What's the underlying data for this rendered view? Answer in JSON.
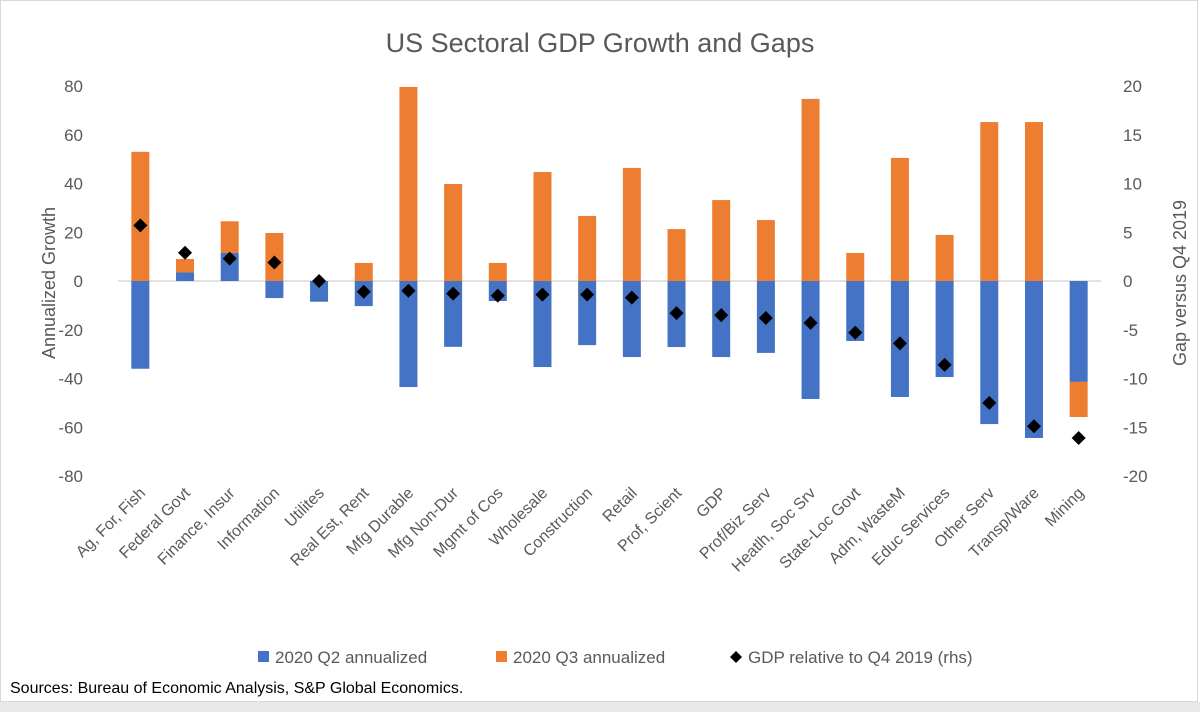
{
  "chart_data": {
    "type": "bar",
    "stacked": true,
    "title": "US Sectoral GDP Growth and Gaps",
    "ylabel": "Annualized Growth",
    "y2label": "Gap versus Q4 2019",
    "xlabel": "",
    "ylim": [
      -80,
      80
    ],
    "y_ticks": [
      "80",
      "60",
      "40",
      "20",
      "0",
      "-20",
      "-40",
      "-60",
      "-80"
    ],
    "y_tick_values": [
      80,
      60,
      40,
      20,
      0,
      -20,
      -40,
      -60,
      -80
    ],
    "y2lim": [
      -20,
      20
    ],
    "y2_ticks": [
      "20",
      "15",
      "10",
      "5",
      "0",
      "-5",
      "-10",
      "-15",
      "-20"
    ],
    "y2_tick_values": [
      20,
      15,
      10,
      5,
      0,
      -5,
      -10,
      -15,
      -20
    ],
    "grid": false,
    "legend_position": "bottom",
    "categories": [
      "Ag, For, Fish",
      "Federal Govt",
      "Finance, Insur",
      "Information",
      "Utilites",
      "Real Est, Rent",
      "Mfg Durable",
      "Mfg Non-Dur",
      "Mgmt of Cos",
      "Wholesale",
      "Construction",
      "Retail",
      "Prof, Scient",
      "GDP",
      "Prof/Biz Serv",
      "Heatlh, Soc Srv",
      "State-Loc Govt",
      "Adm, WasteM",
      "Educ Services",
      "Other Serv",
      "Transp/Ware",
      "Mining"
    ],
    "series": [
      {
        "name": "2020 Q2 annualized",
        "type": "bar",
        "axis": "left",
        "color": "#4472c4",
        "values": [
          -36,
          3.5,
          11.5,
          -7,
          -8.5,
          -10.3,
          -43.5,
          -27,
          -8.2,
          -35.3,
          -26.3,
          -31.2,
          -27.1,
          -31.2,
          -29.5,
          -48.4,
          -24.6,
          -47.6,
          -39.4,
          -58.7,
          -64.4,
          -41.4
        ]
      },
      {
        "name": "2020 Q3 annualized",
        "type": "bar",
        "axis": "left",
        "color": "#ed7d31",
        "values": [
          53,
          5.5,
          13,
          19.7,
          0,
          7.4,
          79.6,
          39.8,
          7.4,
          44.7,
          26.7,
          46.4,
          21.3,
          33.2,
          25,
          74.7,
          11.5,
          50.5,
          18.9,
          65.2,
          65.2,
          -14.4
        ]
      },
      {
        "name": "GDP relative to Q4 2019 (rhs)",
        "type": "scatter",
        "axis": "right",
        "marker": "diamond",
        "color": "#000000",
        "values": [
          5.7,
          2.9,
          2.3,
          1.9,
          0,
          -1.1,
          -1.0,
          -1.3,
          -1.5,
          -1.4,
          -1.4,
          -1.7,
          -3.3,
          -3.5,
          -3.8,
          -4.3,
          -5.3,
          -6.4,
          -8.6,
          -12.5,
          -14.9,
          -16.1
        ]
      }
    ]
  },
  "source_text": "Sources: Bureau of Economic Analysis, S&P Global Economics."
}
